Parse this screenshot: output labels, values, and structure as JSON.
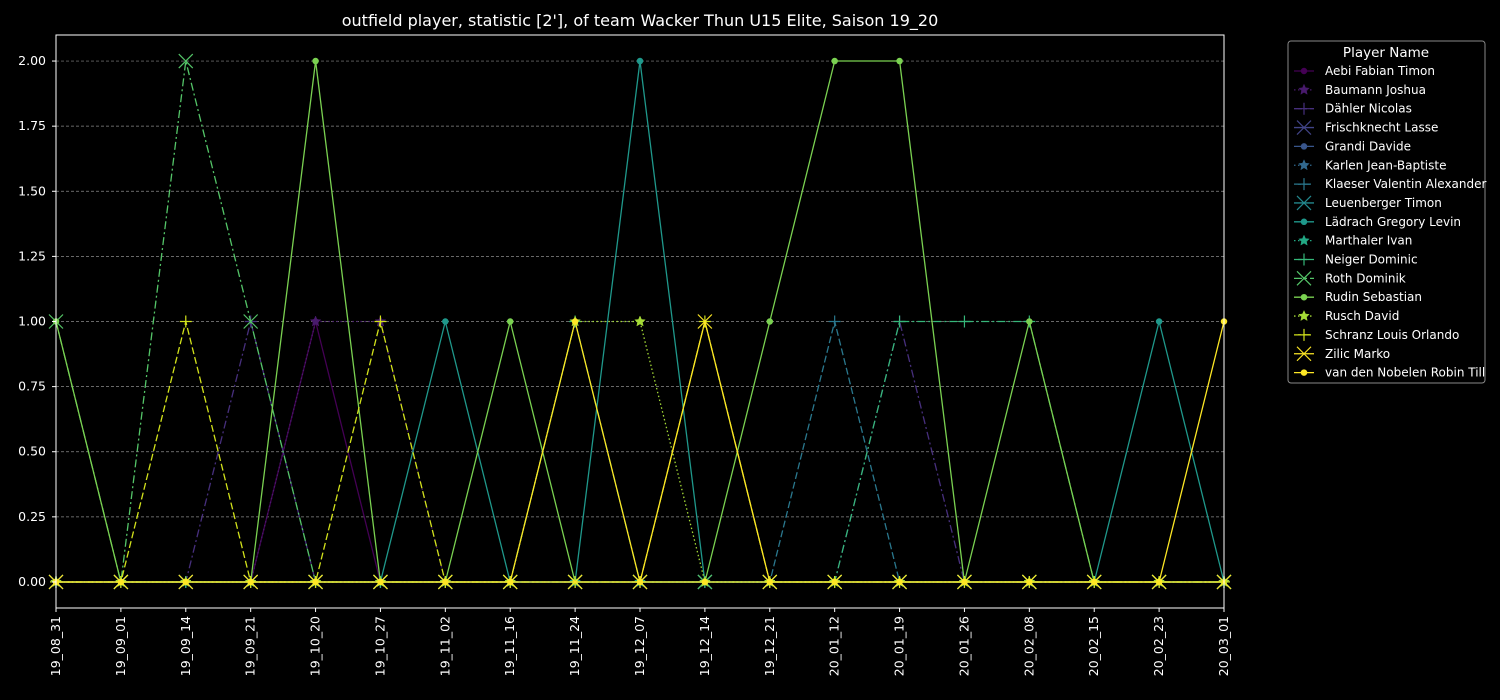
{
  "chart_data": {
    "type": "line",
    "title": "outfield player, statistic [2'], of team Wacker Thun U15 Elite, Saison 19_20",
    "xlabel": "",
    "ylabel": "",
    "categories": [
      "19_08_31",
      "19_09_01",
      "19_09_14",
      "19_09_21",
      "19_10_20",
      "19_10_27",
      "19_11_02",
      "19_11_16",
      "19_11_24",
      "19_12_07",
      "19_12_14",
      "19_12_21",
      "20_01_12",
      "20_01_19",
      "20_01_26",
      "20_02_08",
      "20_02_15",
      "20_02_23",
      "20_03_01"
    ],
    "yticks": [
      "0.00",
      "0.25",
      "0.50",
      "0.75",
      "1.00",
      "1.25",
      "1.50",
      "1.75",
      "2.00"
    ],
    "ylim": [
      -0.1,
      2.1
    ],
    "grid": "horizontal",
    "legend_title": "Player Name",
    "legend_placement": "outside-top-right",
    "series": [
      {
        "name": "Aebi Fabian Timon",
        "color": "#440154",
        "marker": "circle",
        "dash": "solid",
        "values": [
          0,
          0,
          0,
          0,
          1,
          0,
          0,
          0,
          0,
          0,
          0,
          0,
          0,
          0,
          0,
          0,
          0,
          0,
          0
        ]
      },
      {
        "name": "Baumann Joshua",
        "color": "#482173",
        "marker": "star",
        "dash": "dotted",
        "values": [
          0,
          0,
          0,
          0,
          1,
          1,
          0,
          0,
          0,
          0,
          0,
          0,
          0,
          0,
          0,
          0,
          0,
          0,
          0
        ]
      },
      {
        "name": "Dähler Nicolas",
        "color": "#433e85",
        "marker": "plus",
        "dash": "dashdot",
        "values": [
          0,
          0,
          0,
          1,
          0,
          0,
          0,
          0,
          0,
          0,
          0,
          0,
          0,
          1,
          0,
          0,
          0,
          0,
          0
        ]
      },
      {
        "name": "Frischknecht Lasse",
        "color": "#38588c",
        "marker": "x",
        "dash": "solid",
        "values": [
          0,
          0,
          0,
          0,
          0,
          0,
          0,
          0,
          0,
          0,
          0,
          0,
          0,
          0,
          0,
          0,
          0,
          0,
          0
        ]
      },
      {
        "name": "Grandi Davide",
        "color": "#2d708e",
        "marker": "circle",
        "dash": "solid",
        "values": [
          0,
          0,
          0,
          0,
          0,
          0,
          0,
          0,
          0,
          0,
          0,
          0,
          0,
          0,
          0,
          0,
          0,
          0,
          0
        ]
      },
      {
        "name": "Karlen Jean-Baptiste",
        "color": "#25858e",
        "marker": "star",
        "dash": "dotted",
        "values": [
          0,
          0,
          0,
          0,
          0,
          0,
          0,
          0,
          0,
          0,
          0,
          0,
          0,
          0,
          0,
          0,
          0,
          0,
          0
        ]
      },
      {
        "name": "Klaeser Valentin Alexander",
        "color": "#1e9b8a",
        "marker": "plus",
        "dash": "dashed",
        "values": [
          0,
          0,
          0,
          0,
          0,
          0,
          0,
          0,
          0,
          0,
          0,
          0,
          1,
          0,
          0,
          0,
          0,
          0,
          0
        ]
      },
      {
        "name": "Leuenberger Timon",
        "color": "#2ab07f",
        "marker": "x",
        "dash": "solid",
        "values": [
          0,
          0,
          0,
          0,
          0,
          0,
          0,
          0,
          0,
          0,
          0,
          0,
          0,
          0,
          0,
          0,
          0,
          0,
          0
        ]
      },
      {
        "name": "Lädrach Gregory Levin",
        "color": "#52c569",
        "marker": "circle",
        "dash": "solid",
        "values": [
          0,
          0,
          0,
          0,
          0,
          0,
          1,
          0,
          0,
          2,
          0,
          0,
          0,
          0,
          0,
          0,
          0,
          1,
          0
        ]
      },
      {
        "name": "Marthaler Ivan",
        "color": "#86d549",
        "marker": "star",
        "dash": "dotted",
        "values": [
          0,
          0,
          0,
          0,
          0,
          0,
          0,
          0,
          0,
          0,
          0,
          0,
          0,
          0,
          0,
          0,
          0,
          0,
          0
        ]
      },
      {
        "name": "Neiger Dominic",
        "color": "#c2df23",
        "marker": "plus",
        "dash": "dashdot",
        "values": [
          0,
          0,
          0,
          0,
          0,
          0,
          0,
          0,
          1,
          0,
          0,
          0,
          0,
          1,
          1,
          1,
          0,
          0,
          0
        ]
      },
      {
        "name": "Roth Dominik",
        "color": "#fde725",
        "marker": "x",
        "dash": "dashdot",
        "values": [
          1,
          0,
          2,
          1,
          0,
          0,
          0,
          0,
          0,
          0,
          0,
          0,
          0,
          0,
          0,
          0,
          0,
          0,
          0
        ]
      },
      {
        "name": "Rudin Sebastian",
        "color": "#440154",
        "marker": "circle",
        "dash": "solid",
        "values": [
          1,
          0,
          0,
          0,
          2,
          0,
          0,
          1,
          0,
          0,
          0,
          1,
          2,
          2,
          0,
          1,
          0,
          0,
          0
        ]
      },
      {
        "name": "Rusch David",
        "color": "#482173",
        "marker": "star",
        "dash": "dotted",
        "values": [
          0,
          0,
          0,
          0,
          0,
          0,
          0,
          0,
          1,
          1,
          0,
          0,
          0,
          0,
          0,
          0,
          0,
          0,
          0
        ]
      },
      {
        "name": "Schranz Louis Orlando",
        "color": "#433e85",
        "marker": "plus",
        "dash": "dashed",
        "values": [
          0,
          0,
          1,
          0,
          0,
          1,
          0,
          0,
          0,
          0,
          1,
          0,
          0,
          0,
          0,
          0,
          0,
          0,
          0
        ]
      },
      {
        "name": "Zilic Marko",
        "color": "#38588c",
        "marker": "x",
        "dash": "solid",
        "values": [
          0,
          0,
          0,
          0,
          0,
          0,
          0,
          0,
          0,
          0,
          1,
          0,
          0,
          0,
          0,
          0,
          0,
          0,
          0
        ]
      },
      {
        "name": "van den Nobelen Robin Till",
        "color": "#2d708e",
        "marker": "circle",
        "dash": "solid",
        "values": [
          0,
          0,
          0,
          0,
          0,
          0,
          0,
          0,
          1,
          0,
          0,
          0,
          0,
          0,
          0,
          0,
          0,
          0,
          1
        ]
      }
    ]
  },
  "series_colors": [
    "#440154",
    "#481a6c",
    "#472f7d",
    "#414487",
    "#39568c",
    "#31688e",
    "#2a788e",
    "#23888e",
    "#1f988b",
    "#22a884",
    "#35b779",
    "#54c568",
    "#7ad151",
    "#a5db36",
    "#d2e21b",
    "#fde725",
    "#fde725"
  ]
}
